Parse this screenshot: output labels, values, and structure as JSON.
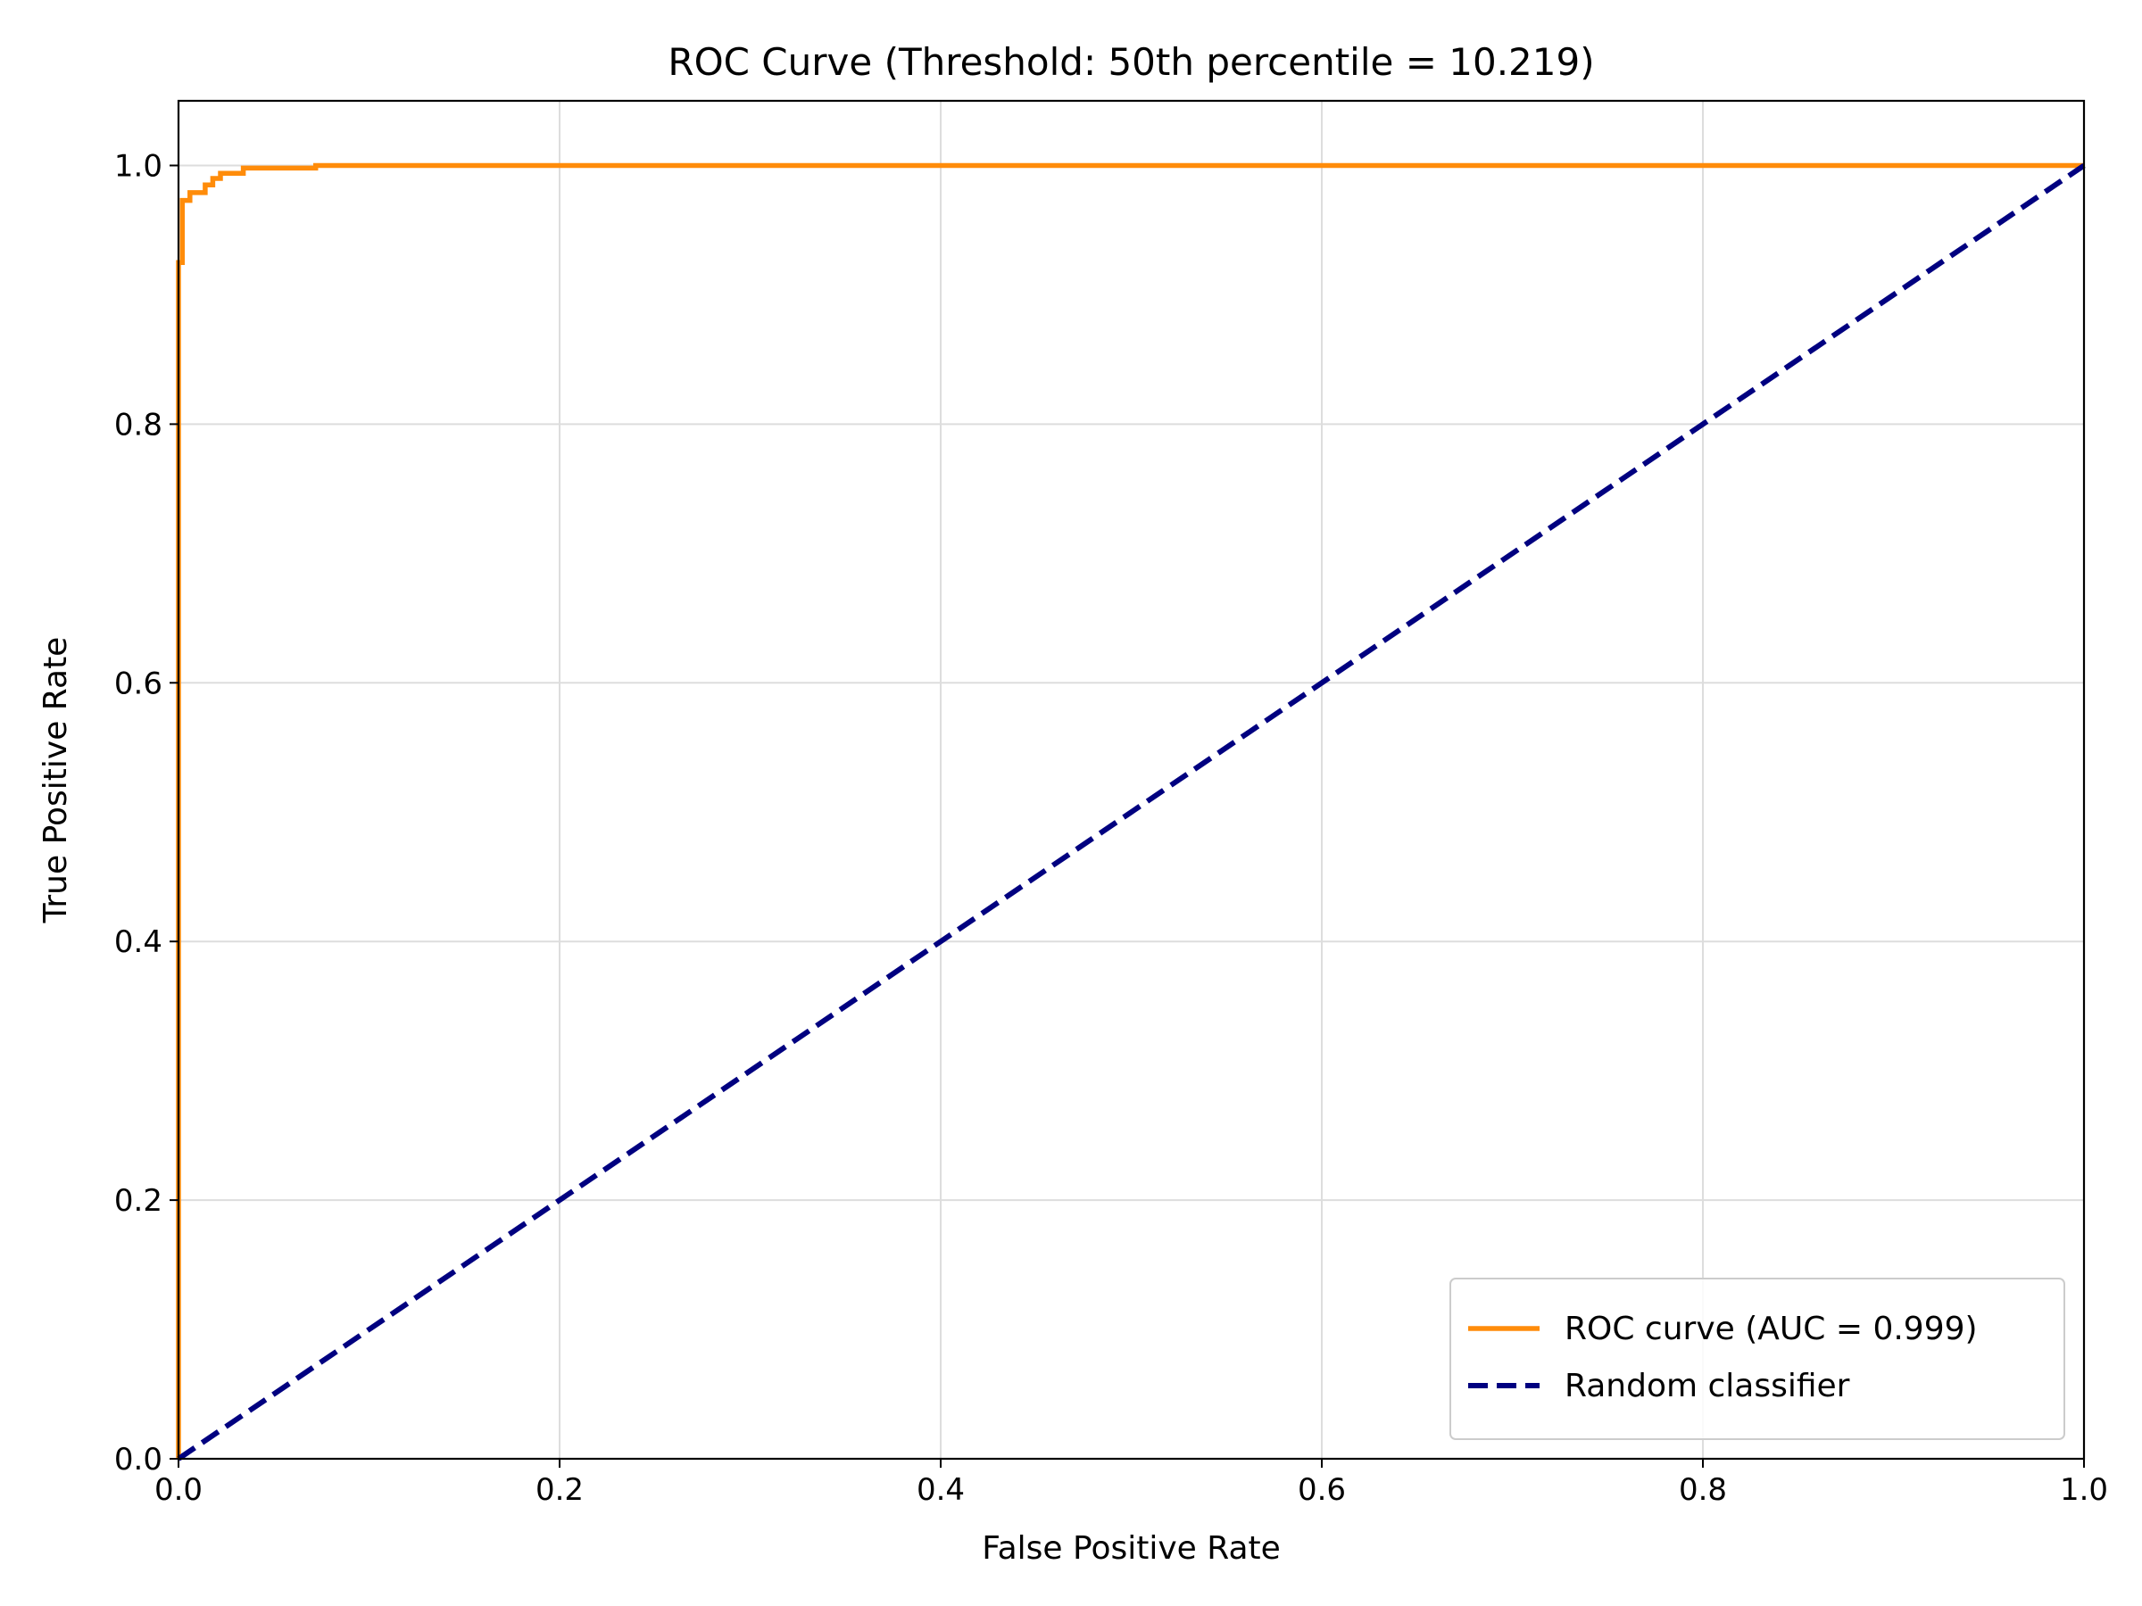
{
  "chart_data": {
    "type": "line",
    "title": "ROC Curve (Threshold: 50th percentile = 10.219)",
    "xlabel": "False Positive Rate",
    "ylabel": "True Positive Rate",
    "xlim": [
      0.0,
      1.0
    ],
    "ylim": [
      0.0,
      1.05
    ],
    "xticks": [
      0.0,
      0.2,
      0.4,
      0.6,
      0.8,
      1.0
    ],
    "xtick_labels": [
      "0.0",
      "0.2",
      "0.4",
      "0.6",
      "0.8",
      "1.0"
    ],
    "yticks": [
      0.0,
      0.2,
      0.4,
      0.6,
      0.8,
      1.0
    ],
    "ytick_labels": [
      "0.0",
      "0.2",
      "0.4",
      "0.6",
      "0.8",
      "1.0"
    ],
    "grid": true,
    "legend_position": "lower-right",
    "series": [
      {
        "name": "ROC curve (AUC = 0.999)",
        "color": "#ff8c0a",
        "style": "solid",
        "x": [
          0.0,
          0.0,
          0.0,
          0.002,
          0.002,
          0.002,
          0.006,
          0.006,
          0.014,
          0.014,
          0.018,
          0.018,
          0.022,
          0.022,
          0.034,
          0.034,
          0.072,
          0.072,
          1.0
        ],
        "y": [
          0.0,
          0.5,
          0.925,
          0.925,
          0.973,
          0.973,
          0.973,
          0.979,
          0.979,
          0.985,
          0.985,
          0.99,
          0.99,
          0.994,
          0.994,
          0.998,
          0.998,
          1.0,
          1.0
        ]
      },
      {
        "name": "Random classifier",
        "color": "#000080",
        "style": "dashed",
        "x": [
          0.0,
          1.0
        ],
        "y": [
          0.0,
          1.0
        ]
      }
    ]
  }
}
